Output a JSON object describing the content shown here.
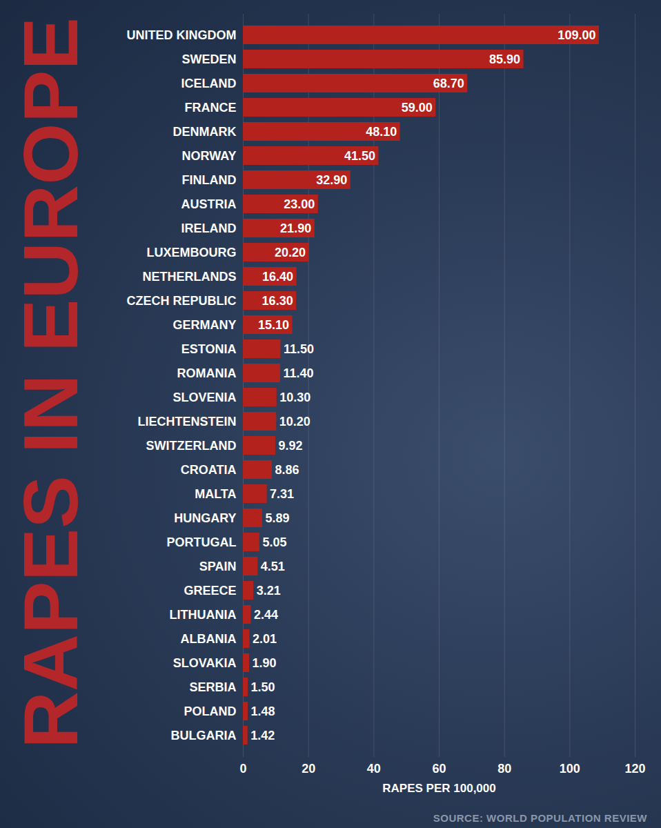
{
  "chart_data": {
    "type": "bar",
    "orientation": "horizontal",
    "title": "RAPES IN EUROPE",
    "x_label": "RAPES PER 100,000",
    "source": "SOURCE: WORLD POPULATION REVIEW",
    "categories": [
      "UNITED KINGDOM",
      "SWEDEN",
      "ICELAND",
      "FRANCE",
      "DENMARK",
      "NORWAY",
      "FINLAND",
      "AUSTRIA",
      "IRELAND",
      "LUXEMBOURG",
      "NETHERLANDS",
      "CZECH REPUBLIC",
      "GERMANY",
      "ESTONIA",
      "ROMANIA",
      "SLOVENIA",
      "LIECHTENSTEIN",
      "SWITZERLAND",
      "CROATIA",
      "MALTA",
      "HUNGARY",
      "PORTUGAL",
      "SPAIN",
      "GREECE",
      "LITHUANIA",
      "ALBANIA",
      "SLOVAKIA",
      "SERBIA",
      "POLAND",
      "BULGARIA"
    ],
    "values": [
      109.0,
      85.9,
      68.7,
      59.0,
      48.1,
      41.5,
      32.9,
      23.0,
      21.9,
      20.2,
      16.4,
      16.3,
      15.1,
      11.5,
      11.4,
      10.3,
      10.2,
      9.92,
      8.86,
      7.31,
      5.89,
      5.05,
      4.51,
      3.21,
      2.44,
      2.01,
      1.9,
      1.5,
      1.48,
      1.42
    ],
    "value_labels": [
      "109.00",
      "85.90",
      "68.70",
      "59.00",
      "48.10",
      "41.50",
      "32.90",
      "23.00",
      "21.90",
      "20.20",
      "16.40",
      "16.30",
      "15.10",
      "11.50",
      "11.40",
      "10.30",
      "10.20",
      "9.92",
      "8.86",
      "7.31",
      "5.89",
      "5.05",
      "4.51",
      "3.21",
      "2.44",
      "2.01",
      "1.90",
      "1.50",
      "1.48",
      "1.42"
    ],
    "xlim": [
      0,
      120
    ],
    "xticks": [
      0,
      20,
      40,
      60,
      80,
      100,
      120
    ],
    "grid": true,
    "data_labels": true,
    "color": "#b3221d"
  }
}
